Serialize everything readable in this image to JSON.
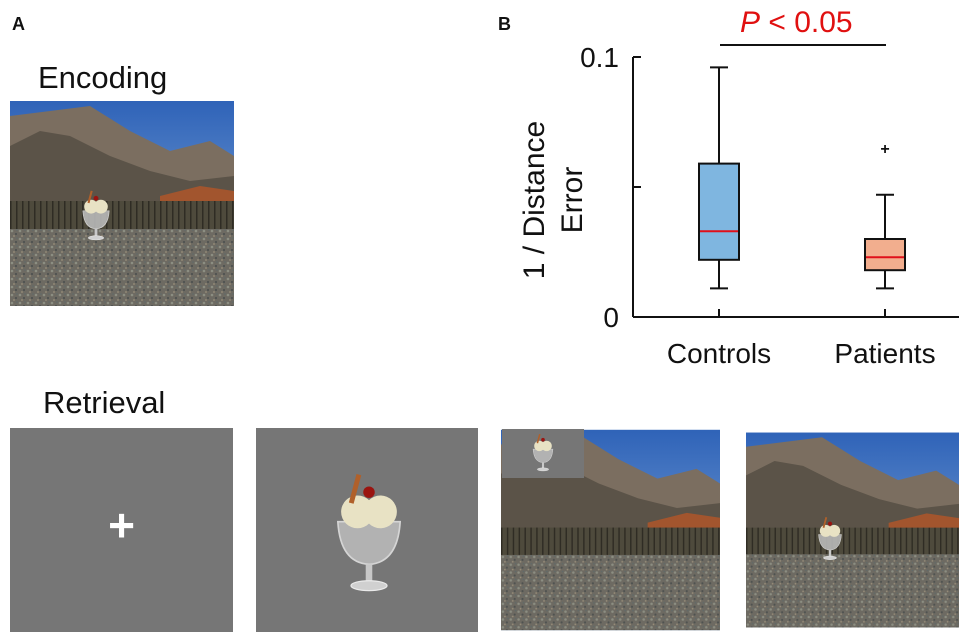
{
  "panel_a": {
    "letter": "A",
    "encoding_heading": "Encoding",
    "retrieval_heading": "Retrieval",
    "fixation_symbol": "+",
    "scene_icon": "mountain-arena-scene",
    "object_icon": "ice-cream-sundae-icon"
  },
  "panel_b": {
    "letter": "B",
    "significance": {
      "symbol": "P",
      "rest": " < 0.05",
      "color": "#e01010"
    }
  },
  "chart_data": {
    "type": "box",
    "ylabel_line1": "1 / Distance",
    "ylabel_line2": "Error",
    "yticks": [
      "0",
      "0.1"
    ],
    "ylim": [
      0,
      0.1
    ],
    "categories": [
      "Controls",
      "Patients"
    ],
    "series": [
      {
        "category": "Controls",
        "min": 0.011,
        "q1": 0.022,
        "median": 0.033,
        "q3": 0.059,
        "max": 0.096,
        "outliers": [],
        "fill": "#7fb6e0"
      },
      {
        "category": "Patients",
        "min": 0.011,
        "q1": 0.018,
        "median": 0.023,
        "q3": 0.03,
        "max": 0.047,
        "outliers": [
          0.065
        ],
        "fill": "#f2ae8e"
      }
    ],
    "median_color": "#e0101a"
  }
}
